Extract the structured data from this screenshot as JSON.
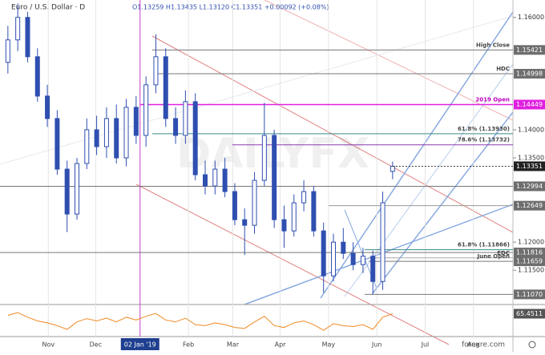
{
  "chart_data": {
    "type": "candlestick",
    "title": "Euro / U.S. Dollar · D",
    "ohlc_text": "O1.13259 H1.13435 L1.13120 C1.13351 +0.00092 (+0.08%)",
    "watermark": "DAILYFX",
    "source": "forexre.com",
    "color": "#2f4fb0",
    "open": [
      1.152,
      1.156,
      1.16,
      1.153,
      1.146,
      1.142,
      1.133,
      1.125,
      1.134,
      1.14,
      1.137,
      1.142,
      1.135,
      1.144,
      1.139,
      1.148,
      1.153,
      1.142,
      1.139,
      1.145,
      1.132,
      1.13,
      1.133,
      1.129,
      1.124,
      1.123,
      1.131,
      1.139,
      1.124,
      1.122,
      1.127,
      1.129,
      1.122,
      1.114,
      1.12,
      1.118,
      1.116,
      1.1175,
      1.113,
      1.13259
    ],
    "high": [
      1.1585,
      1.1625,
      1.161,
      1.1545,
      1.148,
      1.1435,
      1.1345,
      1.135,
      1.142,
      1.1425,
      1.144,
      1.1445,
      1.1455,
      1.146,
      1.1495,
      1.157,
      1.1545,
      1.144,
      1.147,
      1.1465,
      1.1345,
      1.1345,
      1.135,
      1.1305,
      1.126,
      1.1325,
      1.1448,
      1.14,
      1.1265,
      1.1285,
      1.131,
      1.13,
      1.1235,
      1.1215,
      1.1225,
      1.12,
      1.119,
      1.1185,
      1.129,
      1.13435
    ],
    "low": [
      1.15,
      1.154,
      1.152,
      1.145,
      1.1405,
      1.132,
      1.1218,
      1.124,
      1.133,
      1.1355,
      1.135,
      1.134,
      1.1335,
      1.1375,
      1.137,
      1.1465,
      1.1405,
      1.1375,
      1.1375,
      1.131,
      1.1285,
      1.1285,
      1.128,
      1.123,
      1.1177,
      1.1215,
      1.13,
      1.1225,
      1.119,
      1.121,
      1.1255,
      1.121,
      1.111,
      1.113,
      1.117,
      1.115,
      1.1145,
      1.1107,
      1.1115,
      1.1312
    ],
    "close": [
      1.156,
      1.16,
      1.153,
      1.146,
      1.142,
      1.133,
      1.125,
      1.134,
      1.14,
      1.137,
      1.142,
      1.135,
      1.144,
      1.139,
      1.148,
      1.153,
      1.142,
      1.139,
      1.145,
      1.132,
      1.13,
      1.133,
      1.129,
      1.124,
      1.123,
      1.131,
      1.139,
      1.124,
      1.122,
      1.127,
      1.129,
      1.122,
      1.114,
      1.12,
      1.118,
      1.116,
      1.1175,
      1.113,
      1.127,
      1.13351
    ],
    "ylim": [
      1.1089,
      1.1631
    ],
    "yticks": [
      {
        "value": 1.16,
        "label": "1.16000"
      },
      {
        "value": 1.14,
        "label": "1.14000"
      },
      {
        "value": 1.135,
        "label": "1.13500"
      },
      {
        "value": 1.12,
        "label": "1.12000"
      },
      {
        "value": 1.115,
        "label": "1.11500"
      }
    ],
    "current_price": {
      "value": 1.13351,
      "label": "1.13351"
    },
    "levels": [
      {
        "price": {
          "value": 1.15421,
          "label": "1.15421"
        },
        "text": "High Close",
        "color": "#777777"
      },
      {
        "price": {
          "value": 1.14998,
          "label": "1.14998"
        },
        "text": "HDC",
        "color": "#777777"
      },
      {
        "price": {
          "value": 1.14449,
          "label": "1.14449"
        },
        "text": "2019 Open",
        "color": "#e020e0"
      },
      {
        "price": 1.1393,
        "text": "61.8% (1.13930)",
        "color": "#3a8a8a"
      },
      {
        "price": 1.13732,
        "text": "78.6% (1.13732)",
        "color": "#8a3ab0"
      },
      {
        "price": {
          "value": 1.12994,
          "label": "1.12994"
        },
        "color": "#777777"
      },
      {
        "price": {
          "value": 1.12649,
          "label": "1.12649"
        },
        "color": "#999999"
      },
      {
        "price": 1.11866,
        "text": "61.8% (1.11866)",
        "color": "#3a8a8a"
      },
      {
        "price": {
          "value": 1.11816,
          "label": "1.11816"
        },
        "color": "#777777"
      },
      {
        "price": 1.1172,
        "text": "EDC",
        "color": "#aaaaaa"
      },
      {
        "price": {
          "value": 1.11659,
          "label": "1.11659"
        },
        "text": "June Open",
        "color": "#777777"
      },
      {
        "price": {
          "value": 1.1107,
          "label": "1.11070"
        },
        "color": "#777777"
      }
    ],
    "xlim": [
      -0.8,
      51.2
    ],
    "xticks": [
      {
        "value": 4.1,
        "label": "Nov"
      },
      {
        "value": 8.9,
        "label": "Dec"
      },
      {
        "value": 13.4,
        "label": "02 Jan '19"
      },
      {
        "value": 18.3,
        "label": "Feb"
      },
      {
        "value": 22.8,
        "label": "Mar"
      },
      {
        "value": 27.6,
        "label": "Apr"
      },
      {
        "value": 32.5,
        "label": "May"
      },
      {
        "value": 37.4,
        "label": "Jun"
      },
      {
        "value": 42.3,
        "label": "Jul"
      },
      {
        "value": 47.2,
        "label": "Aug"
      }
    ],
    "highlighted_xtick": 2,
    "rsi": {
      "color": "#f08a24",
      "ylim": [
        20,
        80
      ],
      "values": [
        62,
        68,
        58,
        50,
        46,
        40,
        32,
        48,
        55,
        50,
        56,
        48,
        58,
        52,
        60,
        66,
        52,
        48,
        56,
        42,
        40,
        46,
        42,
        36,
        34,
        48,
        60,
        40,
        36,
        46,
        50,
        42,
        30,
        44,
        40,
        38,
        42,
        32,
        58,
        65.4511
      ]
    }
  }
}
